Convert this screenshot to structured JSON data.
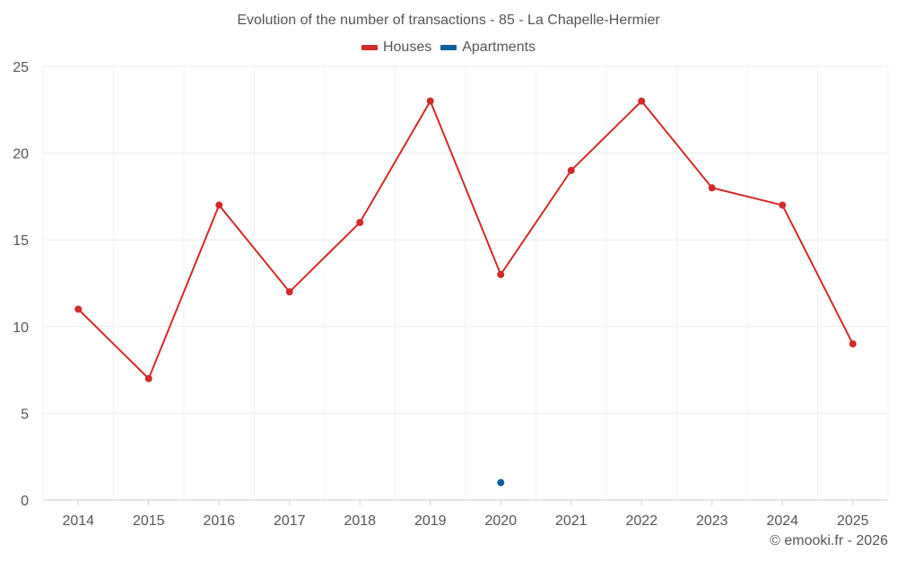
{
  "chart_data": {
    "type": "line",
    "title": "Evolution of the number of transactions - 85 - La Chapelle-Hermier",
    "categories": [
      "2014",
      "2015",
      "2016",
      "2017",
      "2018",
      "2019",
      "2020",
      "2021",
      "2022",
      "2023",
      "2024",
      "2025"
    ],
    "series": [
      {
        "name": "Houses",
        "color": "#d32a2a",
        "values": [
          11,
          7,
          17,
          12,
          16,
          23,
          13,
          19,
          23,
          18,
          17,
          9
        ]
      },
      {
        "name": "Apartments",
        "color": "#0a5e9c",
        "values": [
          null,
          null,
          null,
          null,
          null,
          null,
          1,
          null,
          null,
          null,
          null,
          null
        ]
      }
    ],
    "ylim": [
      0,
      25
    ],
    "yticks": [
      0,
      5,
      10,
      15,
      20,
      25
    ],
    "xlabel": "",
    "ylabel": "",
    "grid": true,
    "legend_position": "top-center"
  },
  "credit": "© emooki.fr - 2026"
}
